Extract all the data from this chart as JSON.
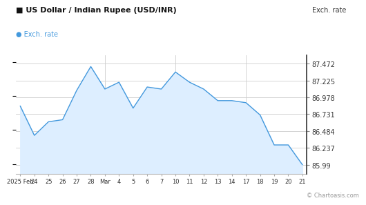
{
  "title": "US Dollar / Indian Rupee (USD/INR)",
  "legend_label": "Exch. rate",
  "ylabel_right": "Exch. rate",
  "watermark": "© Chartoasis.com",
  "line_color": "#4499dd",
  "fill_color": "#ddeeff",
  "background_color": "#ffffff",
  "grid_color": "#cccccc",
  "x_labels": [
    "2025 Feb",
    "24",
    "25",
    "26",
    "27",
    "28",
    "Mar",
    "4",
    "5",
    "6",
    "7",
    "10",
    "11",
    "12",
    "13",
    "14",
    "17",
    "18",
    "19",
    "20",
    "21"
  ],
  "y_ticks": [
    85.99,
    86.237,
    86.484,
    86.731,
    86.978,
    87.225,
    87.472
  ],
  "ylim": [
    85.85,
    87.6
  ],
  "data_x": [
    0,
    1,
    2,
    3,
    4,
    5,
    6,
    7,
    8,
    9,
    10,
    11,
    12,
    13,
    14,
    15,
    16,
    17,
    18,
    19,
    20
  ],
  "data_y": [
    86.85,
    86.42,
    86.62,
    86.65,
    87.08,
    87.43,
    87.1,
    87.2,
    86.82,
    87.13,
    87.1,
    87.35,
    87.2,
    87.1,
    86.93,
    86.93,
    86.9,
    86.72,
    86.28,
    86.28,
    85.99
  ]
}
